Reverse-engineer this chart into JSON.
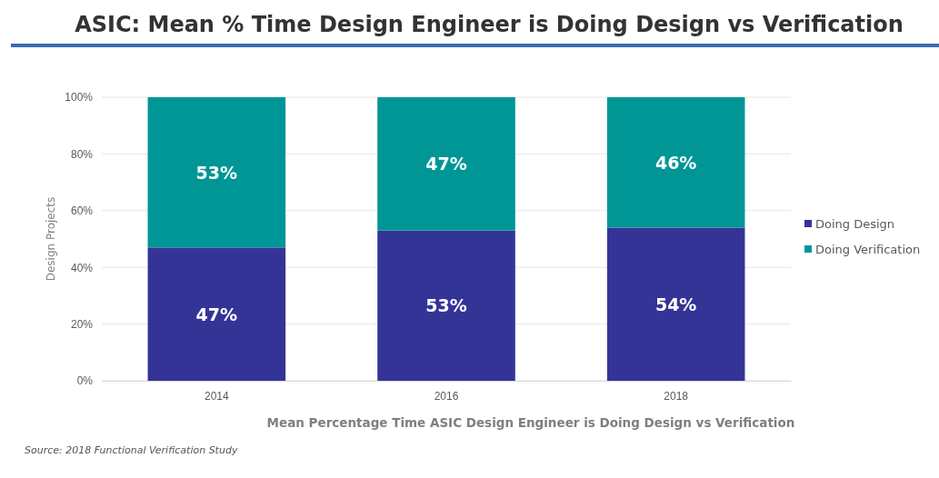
{
  "chart_data": {
    "type": "bar",
    "stacked": true,
    "title": "ASIC: Mean % Time Design Engineer is Doing Design vs Verification",
    "xlabel": "Mean Percentage Time ASIC Design Engineer is Doing Design vs Verification",
    "ylabel": "Design Projects",
    "categories": [
      "2014",
      "2016",
      "2018"
    ],
    "series": [
      {
        "name": "Doing Design",
        "color": "#343497",
        "values": [
          47,
          53,
          54
        ],
        "value_labels": [
          "47%",
          "53%",
          "54%"
        ]
      },
      {
        "name": "Doing Verification",
        "color": "#009696",
        "values": [
          53,
          47,
          46
        ],
        "value_labels": [
          "53%",
          "47%",
          "46%"
        ]
      }
    ],
    "ylim": [
      0,
      100
    ],
    "yticks": [
      {
        "value": 0,
        "label": "0%"
      },
      {
        "value": 20,
        "label": "20%"
      },
      {
        "value": 40,
        "label": "40%"
      },
      {
        "value": 60,
        "label": "60%"
      },
      {
        "value": 80,
        "label": "80%"
      },
      {
        "value": 100,
        "label": "100%"
      }
    ],
    "grid": "y",
    "legend": "right",
    "annotations": [
      "Source:  2018 Functional Verification Study"
    ]
  }
}
